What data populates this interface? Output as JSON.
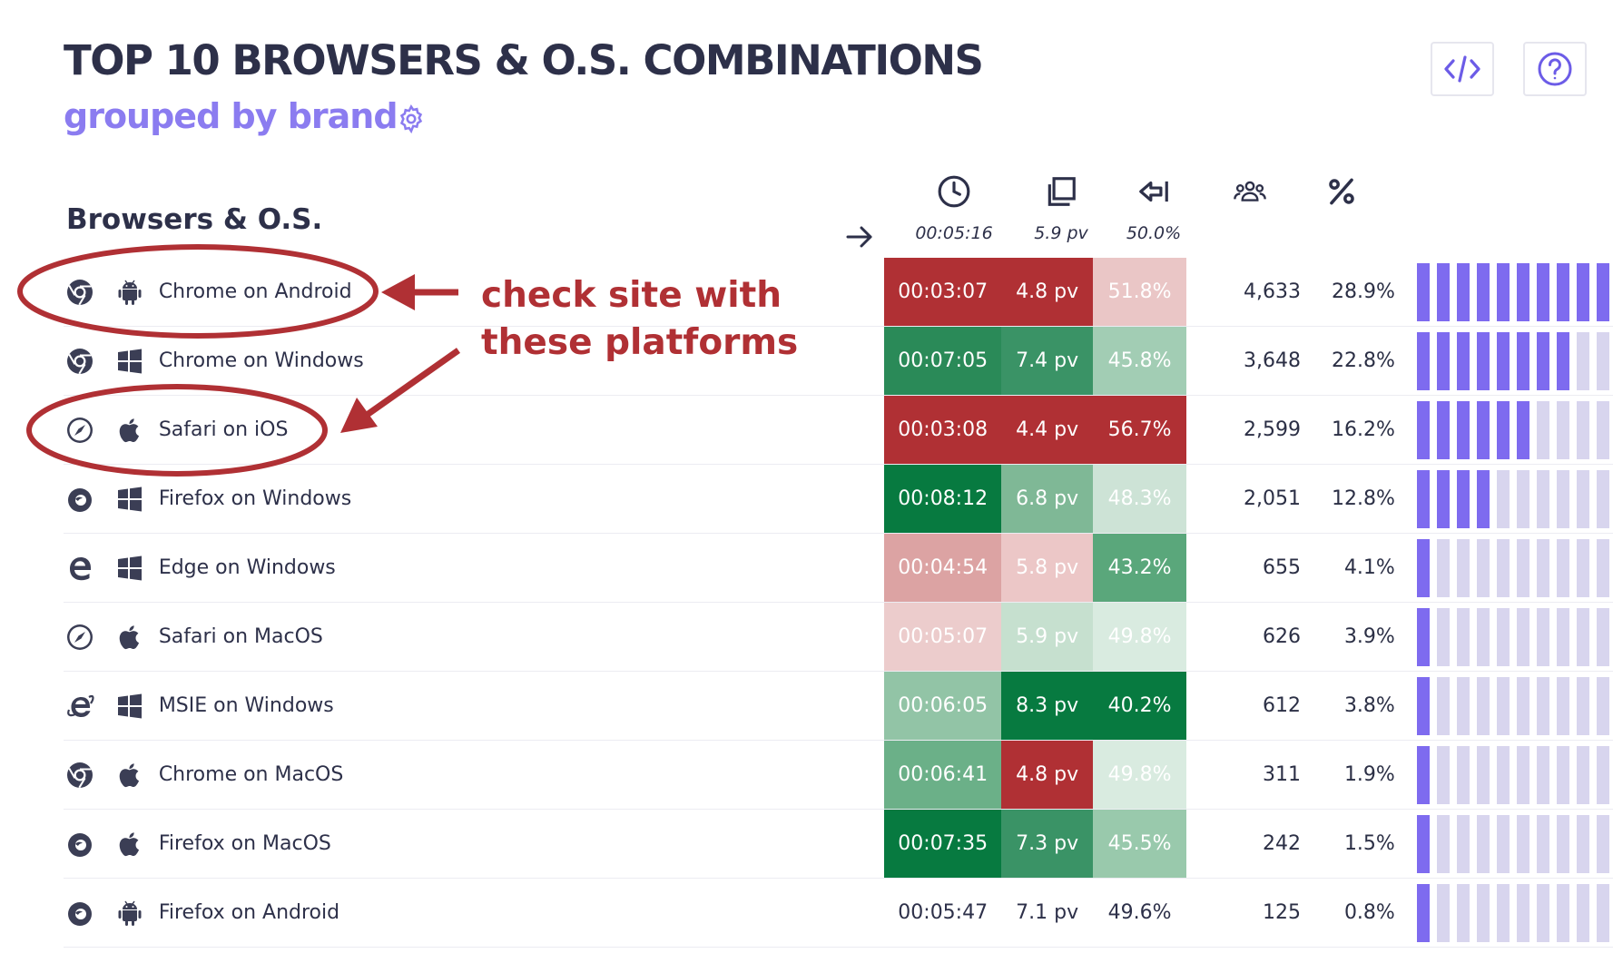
{
  "header": {
    "title": "TOP 10 BROWSERS & O.S. COMBINATIONS",
    "subtitle": "grouped by brand",
    "settings_icon": "gear-icon",
    "embed_icon": "code-icon",
    "help_icon": "question-icon"
  },
  "table": {
    "section_label": "Browsers & O.S.",
    "columns": [
      {
        "icon": "clock-icon",
        "average": "00:05:16"
      },
      {
        "icon": "pages-icon",
        "average": "5.9 pv"
      },
      {
        "icon": "bounce-icon",
        "average": "50.0%"
      },
      {
        "icon": "users-icon",
        "average": ""
      },
      {
        "icon": "percent-icon",
        "average": ""
      }
    ],
    "rows": [
      {
        "browser_icon": "chrome-icon",
        "os_icon": "android-icon",
        "name": "Chrome on Android",
        "time": "00:03:07",
        "pv": "4.8 pv",
        "bounce": "51.8%",
        "users": "4,633",
        "pct": "28.9%",
        "bar_level": 10,
        "colors": {
          "time": "#b03034",
          "pv": "#b03034",
          "bounce": "#eac6c6"
        }
      },
      {
        "browser_icon": "chrome-icon",
        "os_icon": "windows-icon",
        "name": "Chrome on Windows",
        "time": "00:07:05",
        "pv": "7.4 pv",
        "bounce": "45.8%",
        "users": "3,648",
        "pct": "22.8%",
        "bar_level": 8,
        "colors": {
          "time": "#2a8a58",
          "pv": "#3a9366",
          "bounce": "#a2cdb4"
        }
      },
      {
        "browser_icon": "safari-icon",
        "os_icon": "apple-icon",
        "name": "Safari on iOS",
        "time": "00:03:08",
        "pv": "4.4 pv",
        "bounce": "56.7%",
        "users": "2,599",
        "pct": "16.2%",
        "bar_level": 6,
        "colors": {
          "time": "#b03034",
          "pv": "#b03034",
          "bounce": "#b03034"
        }
      },
      {
        "browser_icon": "firefox-icon",
        "os_icon": "windows-icon",
        "name": "Firefox on Windows",
        "time": "00:08:12",
        "pv": "6.8 pv",
        "bounce": "48.3%",
        "users": "2,051",
        "pct": "12.8%",
        "bar_level": 4,
        "colors": {
          "time": "#077a40",
          "pv": "#7fb896",
          "bounce": "#cde3d6"
        }
      },
      {
        "browser_icon": "edge-icon",
        "os_icon": "windows-icon",
        "name": "Edge on Windows",
        "time": "00:04:54",
        "pv": "5.8 pv",
        "bounce": "43.2%",
        "users": "655",
        "pct": "4.1%",
        "bar_level": 1,
        "colors": {
          "time": "#dca3a3",
          "pv": "#ecc7c7",
          "bounce": "#5aa77b"
        }
      },
      {
        "browser_icon": "safari-icon",
        "os_icon": "apple-icon",
        "name": "Safari on MacOS",
        "time": "00:05:07",
        "pv": "5.9 pv",
        "bounce": "49.8%",
        "users": "626",
        "pct": "3.9%",
        "bar_level": 1,
        "colors": {
          "time": "#eccccc",
          "pv": "#c6e0cf",
          "bounce": "#d9ebe0"
        }
      },
      {
        "browser_icon": "msie-icon",
        "os_icon": "windows-icon",
        "name": "MSIE on Windows",
        "time": "00:06:05",
        "pv": "8.3 pv",
        "bounce": "40.2%",
        "users": "612",
        "pct": "3.8%",
        "bar_level": 1,
        "colors": {
          "time": "#92c4a6",
          "pv": "#077a40",
          "bounce": "#077a40"
        }
      },
      {
        "browser_icon": "chrome-icon",
        "os_icon": "apple-icon",
        "name": "Chrome on MacOS",
        "time": "00:06:41",
        "pv": "4.8 pv",
        "bounce": "49.8%",
        "users": "311",
        "pct": "1.9%",
        "bar_level": 1,
        "colors": {
          "time": "#6bb088",
          "pv": "#b03034",
          "bounce": "#d9ebe0"
        }
      },
      {
        "browser_icon": "firefox-icon",
        "os_icon": "apple-icon",
        "name": "Firefox on MacOS",
        "time": "00:07:35",
        "pv": "7.3 pv",
        "bounce": "45.5%",
        "users": "242",
        "pct": "1.5%",
        "bar_level": 1,
        "colors": {
          "time": "#077a40",
          "pv": "#3a9366",
          "bounce": "#99c9ac"
        }
      },
      {
        "browser_icon": "firefox-icon",
        "os_icon": "android-icon",
        "name": "Firefox on Android",
        "time": "00:05:47",
        "pv": "7.1 pv",
        "bounce": "49.6%",
        "users": "125",
        "pct": "0.8%",
        "bar_level": 1,
        "colors": {
          "time": "#ffffff",
          "pv": "#ffffff",
          "bounce": "#ffffff"
        }
      }
    ]
  },
  "annotation": {
    "line1": "check site with",
    "line2": "these platforms",
    "color": "#b03034"
  }
}
